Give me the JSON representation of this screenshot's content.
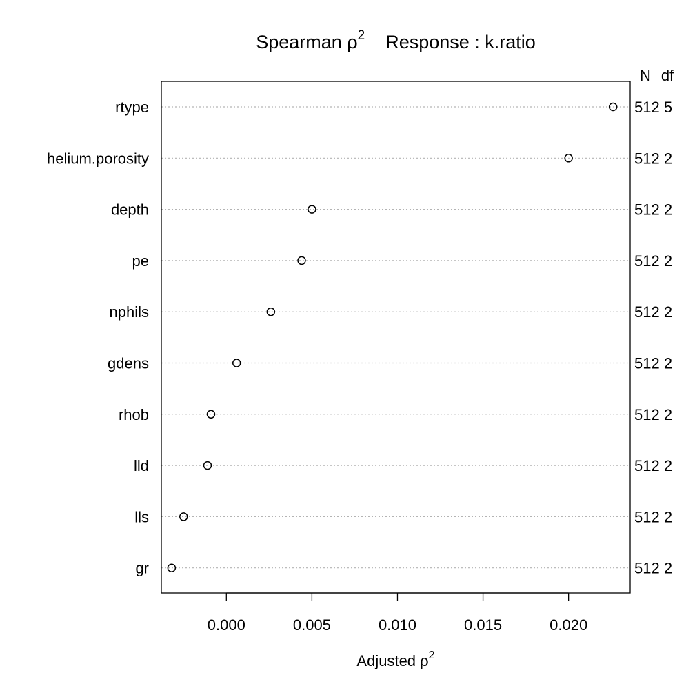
{
  "chart_data": {
    "type": "scatter",
    "title_main": "Spearman ρ",
    "title_sup": "2",
    "title_response": "Response : k.ratio",
    "xlabel_main": "Adjusted ρ",
    "xlabel_sup": "2",
    "ylabel": "",
    "col_headers": [
      "N",
      "df"
    ],
    "xlim": [
      -0.0038,
      0.0236
    ],
    "x_ticks": [
      0.0,
      0.005,
      0.01,
      0.015,
      0.02
    ],
    "x_tick_labels": [
      "0.000",
      "0.005",
      "0.010",
      "0.015",
      "0.020"
    ],
    "grid": "dotted horizontal",
    "rows": [
      {
        "label": "rtype",
        "value": 0.0226,
        "n_df": "512 5"
      },
      {
        "label": "helium.porosity",
        "value": 0.02,
        "n_df": "512 2"
      },
      {
        "label": "depth",
        "value": 0.005,
        "n_df": "512 2"
      },
      {
        "label": "pe",
        "value": 0.0044,
        "n_df": "512 2"
      },
      {
        "label": "nphils",
        "value": 0.0026,
        "n_df": "512 2"
      },
      {
        "label": "gdens",
        "value": 0.0006,
        "n_df": "512 2"
      },
      {
        "label": "rhob",
        "value": -0.0009,
        "n_df": "512 2"
      },
      {
        "label": "lld",
        "value": -0.0011,
        "n_df": "512 2"
      },
      {
        "label": "lls",
        "value": -0.0025,
        "n_df": "512 2"
      },
      {
        "label": "gr",
        "value": -0.0032,
        "n_df": "512 2"
      }
    ]
  }
}
